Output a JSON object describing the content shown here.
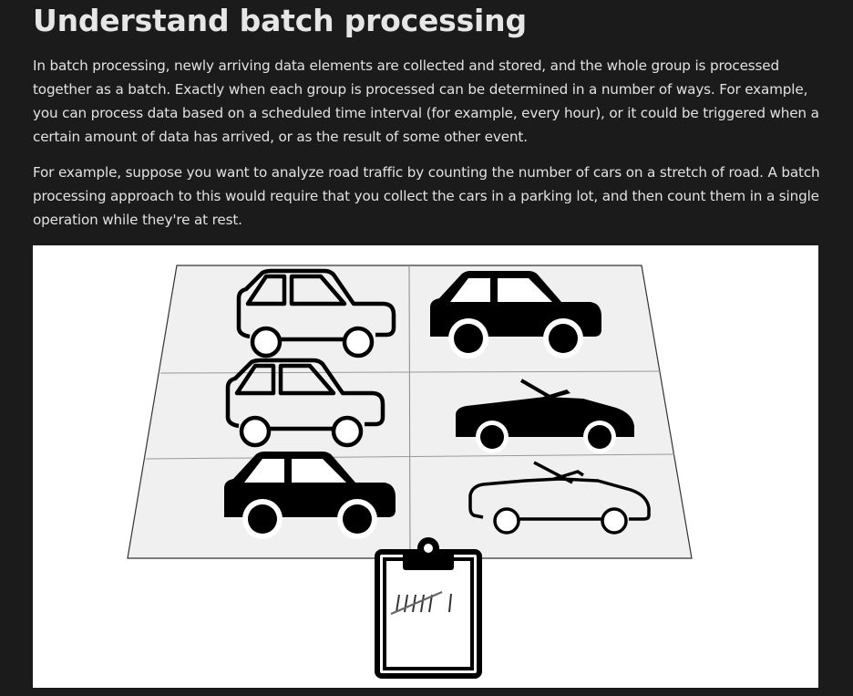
{
  "article": {
    "title": "Understand batch processing",
    "paragraphs": [
      "In batch processing, newly arriving data elements are collected and stored, and the whole group is processed together as a batch. Exactly when each group is processed can be determined in a number of ways. For example, you can process data based on a scheduled time interval (for example, every hour), or it could be triggered when a certain amount of data has arrived, or as the result of some other event.",
      "For example, suppose you want to analyze road traffic by counting the number of cars on a stretch of road. A batch processing approach to this would require that you collect the cars in a parking lot, and then count them in a single operation while they're at rest."
    ]
  },
  "illustration": {
    "icons": [
      "car-outline-icon",
      "car-solid-icon",
      "convertible-solid-icon",
      "convertible-outline-icon",
      "clipboard-icon",
      "tally-marks-icon"
    ],
    "colors": {
      "lot_fill": "#f0f0f0",
      "ink": "#000000",
      "background": "#ffffff"
    }
  }
}
